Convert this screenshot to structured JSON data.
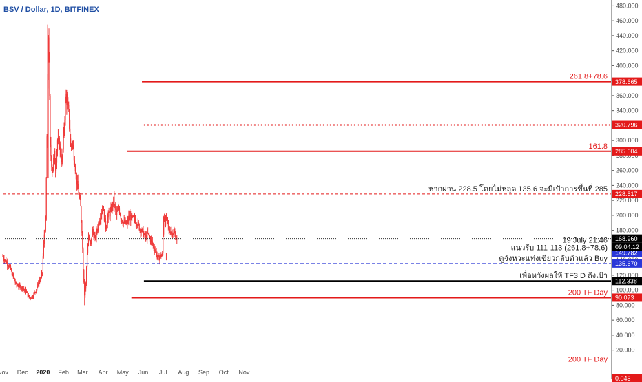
{
  "header": {
    "title": "BSV / Dollar, 1D, BITFINEX"
  },
  "colors": {
    "accent": "#1f4ea3",
    "candle": "#ef3a3a",
    "red_line": "#e31a1a",
    "blue_dashed": "#2a37d8",
    "black": "#000000"
  },
  "chart_data": {
    "type": "line",
    "title": "BSV / Dollar, 1D, BITFINEX",
    "ylim": [
      0,
      480
    ],
    "y_ticks": [
      {
        "value": 480,
        "label": "480.000"
      },
      {
        "value": 460,
        "label": "460.000"
      },
      {
        "value": 440,
        "label": "440.000"
      },
      {
        "value": 420,
        "label": "420.000"
      },
      {
        "value": 400,
        "label": "400.000"
      },
      {
        "value": 380,
        "label": "380.000"
      },
      {
        "value": 360,
        "label": "360.000"
      },
      {
        "value": 340,
        "label": "340.000"
      },
      {
        "value": 320,
        "label": "320.000"
      },
      {
        "value": 300,
        "label": "300.000"
      },
      {
        "value": 280,
        "label": "280.000"
      },
      {
        "value": 260,
        "label": "260.000"
      },
      {
        "value": 240,
        "label": "240.000"
      },
      {
        "value": 220,
        "label": "220.000"
      },
      {
        "value": 200,
        "label": "200.000"
      },
      {
        "value": 180,
        "label": "180.000"
      },
      {
        "value": 160,
        "label": "160.000"
      },
      {
        "value": 140,
        "label": "140.000"
      },
      {
        "value": 120,
        "label": "120.000"
      },
      {
        "value": 100,
        "label": "100.000"
      },
      {
        "value": 80,
        "label": "80.000"
      },
      {
        "value": 60,
        "label": "60.000"
      },
      {
        "value": 40,
        "label": "40.000"
      },
      {
        "value": 20,
        "label": "20.000"
      }
    ],
    "x_ticks": [
      "Nov",
      "Dec",
      "2020",
      "Feb",
      "Mar",
      "Apr",
      "May",
      "Jun",
      "Jul",
      "Aug",
      "Sep",
      "Oct",
      "Nov"
    ],
    "x_tick_days": [
      0,
      30,
      61,
      92,
      121,
      152,
      182,
      213,
      243,
      274,
      305,
      335,
      366
    ],
    "series": [
      {
        "values_x_days": [
          0,
          5,
          10,
          15,
          20,
          25,
          30,
          35,
          40,
          45,
          50,
          55,
          58,
          60,
          61,
          63,
          65,
          67,
          69,
          70,
          72,
          75,
          78,
          80,
          83,
          86,
          90,
          93,
          96,
          100,
          103,
          105,
          108,
          110,
          112,
          115,
          118,
          120,
          122,
          124,
          126,
          128,
          130,
          133,
          136,
          140,
          144,
          148,
          152,
          156,
          160,
          164,
          168,
          172,
          176,
          180,
          184,
          188,
          192,
          196,
          200,
          204,
          208,
          212,
          216,
          220,
          224,
          228,
          232,
          234,
          236,
          238,
          240,
          242,
          244,
          246,
          248,
          250,
          252,
          256,
          260,
          262,
          264
        ],
        "values": [
          145,
          138,
          132,
          120,
          108,
          105,
          103,
          99,
          90,
          92,
          100,
          112,
          118,
          124,
          145,
          175,
          190,
          305,
          440,
          415,
          290,
          260,
          280,
          265,
          300,
          295,
          270,
          320,
          360,
          335,
          290,
          300,
          280,
          265,
          245,
          230,
          210,
          180,
          130,
          95,
          110,
          150,
          172,
          160,
          180,
          168,
          185,
          200,
          210,
          185,
          200,
          205,
          220,
          200,
          210,
          195,
          190,
          188,
          200,
          195,
          195,
          190,
          182,
          178,
          170,
          175,
          168,
          160,
          152,
          145,
          142,
          145,
          146,
          148,
          200,
          190,
          195,
          190,
          180,
          178,
          176,
          172,
          168
        ]
      }
    ],
    "levels": [
      {
        "value": 378.665,
        "label": "261.8+78.6",
        "tag": "378.665",
        "style": "solid-red",
        "from_day": 211
      },
      {
        "value": 320.796,
        "label": "",
        "tag": "320.796",
        "style": "dotted-red",
        "from_day": 214
      },
      {
        "value": 285.604,
        "label": "161.8",
        "tag": "285.604",
        "style": "solid-red",
        "from_day": 189
      },
      {
        "value": 228.517,
        "label": "หากผ่าน 228.5 โดยไม่หลุด 135.6 จะมีเป้าการขึ้นที่ 285",
        "tag": "228.517",
        "style": "dashed-red",
        "from_day": 0
      },
      {
        "value": 168.96,
        "label": "",
        "tag": "168.960",
        "style": "dotted-black",
        "from_day": 0
      },
      {
        "value": 149.782,
        "label": "แนวรับ 111-113 (261.8+78.6)",
        "tag": "149.782",
        "style": "dashed-blue",
        "from_day": 0
      },
      {
        "value": 135.67,
        "label": "ดูจังหวะแท่งเขียวกลับตัวแล้ว Buy",
        "tag": "135.670",
        "style": "dashed-blue",
        "from_day": 0
      },
      {
        "value": 112.338,
        "label": "เพื่อหวังผลให้ TF3 D ถึงเป้า",
        "tag": "112.338",
        "style": "solid-black",
        "from_day": 214
      },
      {
        "value": 90.073,
        "label": "200 TF Day",
        "tag": "90.073",
        "style": "solid-red",
        "from_day": 195
      }
    ],
    "annotations": [
      {
        "text": "19 July 21.46",
        "value": 160
      },
      {
        "text": "200 TF Day",
        "value": 1
      }
    ],
    "countdown_tag": "09:04:12",
    "bottom_tag_partial": "0.045"
  }
}
